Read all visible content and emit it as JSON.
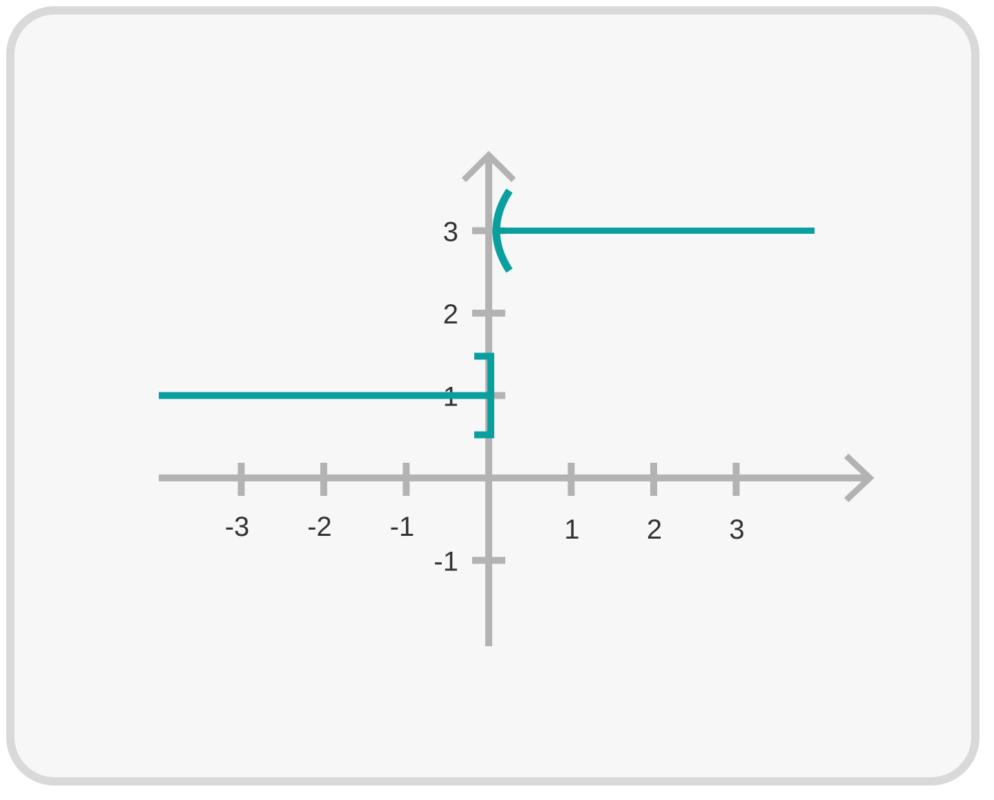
{
  "chart_data": {
    "type": "line",
    "title": "",
    "xlabel": "",
    "ylabel": "",
    "grid": false,
    "legend": "none",
    "xlim": [
      -4,
      4
    ],
    "ylim": [
      -2,
      4
    ],
    "x_ticks": [
      -3,
      -2,
      -1,
      1,
      2,
      3
    ],
    "y_ticks": [
      -1,
      1,
      2,
      3
    ],
    "x_tick_labels": [
      "-3",
      "-2",
      "-1",
      "1",
      "2",
      "3"
    ],
    "y_tick_labels": [
      "-1",
      "1",
      "2",
      "3"
    ],
    "series": [
      {
        "x": [
          -4,
          0
        ],
        "y": [
          1,
          1
        ],
        "right_endpoint": "closed",
        "endpoint_symbol": "]"
      },
      {
        "x": [
          0,
          4
        ],
        "y": [
          3,
          3
        ],
        "left_endpoint": "open",
        "endpoint_symbol": "("
      }
    ],
    "colors": {
      "series": "#0a9f9f",
      "axes": "#b3b3b3",
      "labels": "#333333"
    }
  }
}
